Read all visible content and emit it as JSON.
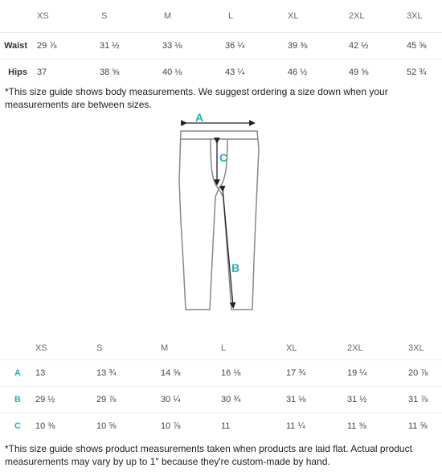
{
  "body_table": {
    "sizes": [
      "XS",
      "S",
      "M",
      "L",
      "XL",
      "2XL",
      "3XL"
    ],
    "rows": [
      {
        "label": "Waist",
        "values": [
          "29 ⅞",
          "31 ½",
          "33 ⅛",
          "36 ¼",
          "39 ⅜",
          "42 ½",
          "45 ⅝"
        ]
      },
      {
        "label": "Hips",
        "values": [
          "37",
          "38 ⅝",
          "40 ⅛",
          "43 ¼",
          "46 ½",
          "49 ⅝",
          "52 ¾"
        ]
      }
    ],
    "note": "*This size guide shows body measurements. We suggest ordering a size down when your measurements are between sizes."
  },
  "diagram": {
    "labels": {
      "a": "A",
      "b": "B",
      "c": "C"
    },
    "accent": "#1fb5b0"
  },
  "product_table": {
    "sizes": [
      "XS",
      "S",
      "M",
      "L",
      "XL",
      "2XL",
      "3XL"
    ],
    "rows": [
      {
        "label": "A",
        "values": [
          "13",
          "13 ¾",
          "14 ⅝",
          "16 ⅛",
          "17 ¾",
          "19 ¼",
          "20 ⅞"
        ]
      },
      {
        "label": "B",
        "values": [
          "29 ½",
          "29 ⅞",
          "30 ¼",
          "30 ¾",
          "31 ⅛",
          "31 ½",
          "31 ⅞"
        ]
      },
      {
        "label": "C",
        "values": [
          "10 ⅜",
          "10 ⅝",
          "10 ⅞",
          "11",
          "11 ¼",
          "11 ⅜",
          "11 ⅝"
        ]
      }
    ],
    "note": "*This size guide shows product measurements taken when products are laid flat. Actual product measurements may vary by up to 1\" because they're custom-made by hand."
  }
}
